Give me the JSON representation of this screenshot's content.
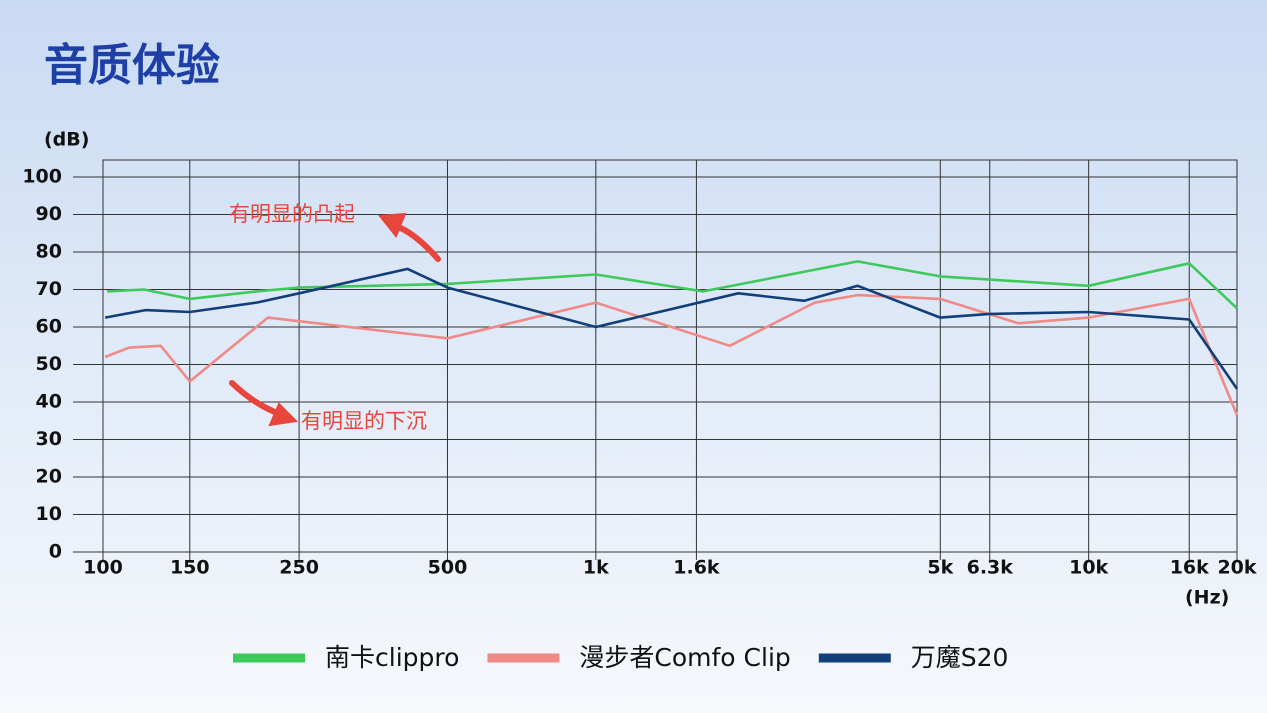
{
  "chart_data": {
    "type": "line",
    "title": "音质体验",
    "y_label": "(dB)",
    "x_label": "(Hz)",
    "x_scale": "log",
    "grid": true,
    "xlim": [
      100,
      20000
    ],
    "ylim": [
      0,
      100
    ],
    "xticks": [
      100,
      150,
      250,
      500,
      {
        "value": 1000,
        "label": "1k"
      },
      {
        "value": 1600,
        "label": "1.6k"
      },
      {
        "value": 5000,
        "label": "5k"
      },
      {
        "value": 6300,
        "label": "6.3k"
      },
      {
        "value": 10000,
        "label": "10k"
      },
      {
        "value": 16000,
        "label": "16k"
      },
      {
        "value": 20000,
        "label": "20k"
      }
    ],
    "yticks": [
      0,
      10,
      20,
      30,
      40,
      50,
      60,
      70,
      80,
      90,
      100
    ],
    "annotations": [
      "有明显的凸起",
      "有明显的下沉"
    ],
    "series": [
      {
        "name": "南卡clippro",
        "color": "#3ec95b",
        "x": [
          102,
          121,
          150,
          205,
          250,
          500,
          1000,
          1650,
          3400,
          5000,
          10000,
          16000,
          20000
        ],
        "values": [
          69.5,
          70,
          67.5,
          69.5,
          70.5,
          71.5,
          74,
          69.5,
          77.5,
          73.5,
          71,
          77,
          65
        ]
      },
      {
        "name": "漫步者Comfo Clip",
        "color": "#f08a87",
        "x": [
          101,
          113,
          131,
          150,
          216,
          500,
          1000,
          1870,
          2780,
          3400,
          5000,
          7200,
          10000,
          16000,
          20000
        ],
        "values": [
          52,
          54.5,
          55,
          45.5,
          62.5,
          57,
          66.5,
          55,
          66.5,
          68.5,
          67.5,
          61,
          62.5,
          67.5,
          36.5
        ]
      },
      {
        "name": "万魔S20",
        "color": "#123f7a",
        "x": [
          101,
          122,
          150,
          205,
          250,
          415,
          500,
          1000,
          1945,
          2650,
          3400,
          5000,
          6300,
          10000,
          16000,
          20000
        ],
        "values": [
          62.5,
          64.5,
          64,
          66.5,
          69,
          75.5,
          70.5,
          60,
          69,
          67,
          71,
          62.5,
          63.5,
          64,
          62,
          43.5
        ]
      }
    ]
  }
}
